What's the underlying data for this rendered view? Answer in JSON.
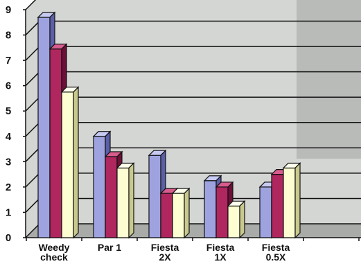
{
  "chart_data": {
    "type": "bar",
    "categories": [
      [
        "Weedy",
        "check"
      ],
      [
        "Par 1"
      ],
      [
        "Fiesta",
        "2X"
      ],
      [
        "Fiesta",
        "1X"
      ],
      [
        "Fiesta",
        "0.5X"
      ]
    ],
    "series": [
      {
        "values": [
          8.7,
          4.0,
          3.25,
          2.25,
          2.0
        ],
        "color": "#9ea3e0",
        "side_color": "#5b5fa8",
        "top_color": "#c7caf2"
      },
      {
        "values": [
          7.45,
          3.2,
          1.75,
          2.0,
          2.5
        ],
        "color": "#b0265f",
        "side_color": "#6c1038",
        "top_color": "#d95c8e"
      },
      {
        "values": [
          5.75,
          2.75,
          1.75,
          1.25,
          2.75
        ],
        "color": "#fdfdd2",
        "side_color": "#c9c98e",
        "top_color": "#ffffee"
      }
    ],
    "y_ticks": [
      "0",
      "1",
      "2",
      "3",
      "4",
      "5",
      "6",
      "7",
      "8",
      "9"
    ],
    "ylim": [
      0,
      9
    ],
    "grid": true,
    "legend": "none",
    "colors": {
      "plot_background": "#d4d6d4",
      "back_wall_shade": "#b9bbb9",
      "floor": "#a9aba9",
      "gridline": "#111111"
    }
  }
}
